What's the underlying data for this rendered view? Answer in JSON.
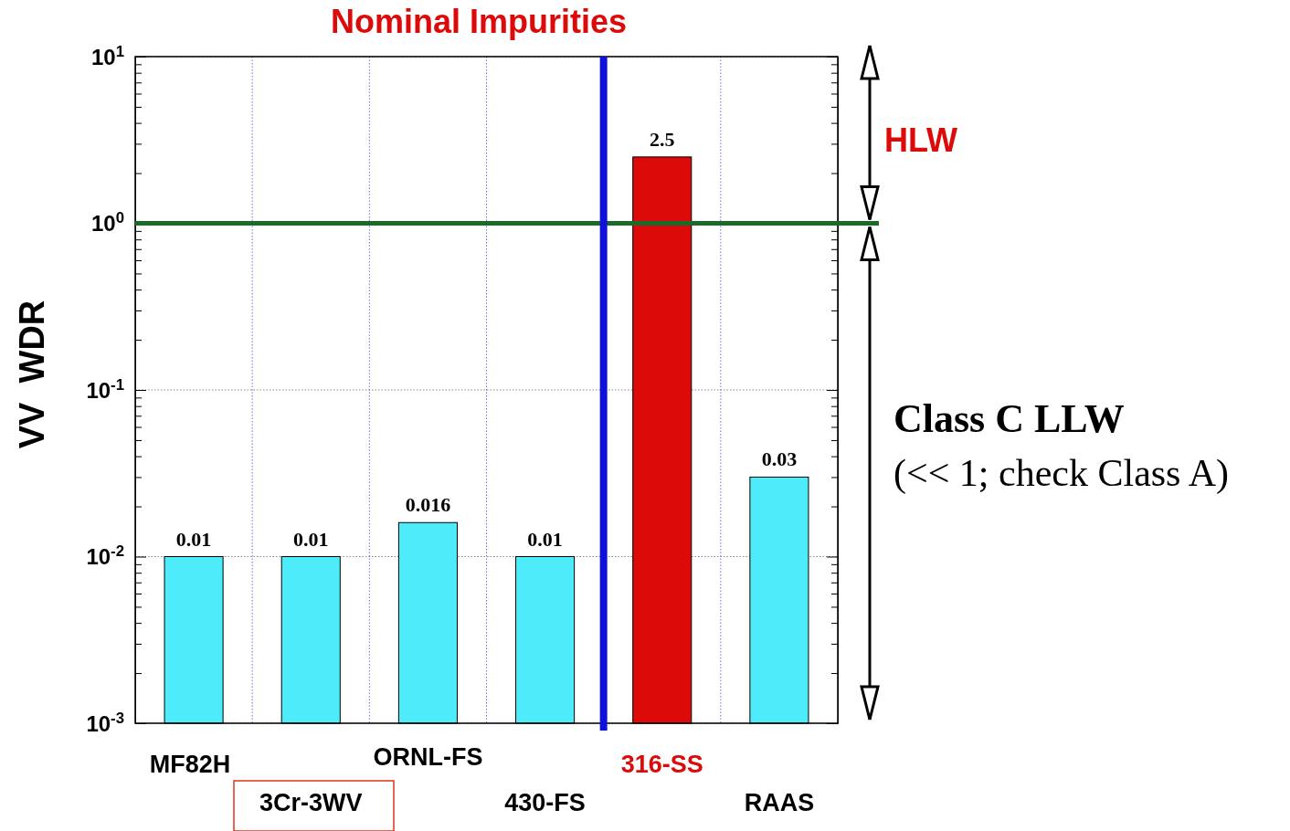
{
  "chart_data": {
    "type": "bar",
    "title": "Nominal Impurities",
    "ylabel": "VV  WDR",
    "categories": [
      "MF82H",
      "3Cr-3WV",
      "ORNL-FS",
      "430-FS",
      "316-SS",
      "RAAS"
    ],
    "values": [
      0.01,
      0.01,
      0.016,
      0.01,
      2.5,
      0.03
    ],
    "colors": [
      "#4eecfa",
      "#4eecfa",
      "#4eecfa",
      "#4eecfa",
      "#dd0a0a",
      "#4eecfa"
    ],
    "data_labels": true,
    "log": true,
    "ylim": [
      0.001,
      10
    ],
    "grid": true,
    "yticks": [
      {
        "value": 0.001,
        "label": "10$^{-3}$"
      },
      {
        "value": 0.002,
        "label": null
      },
      {
        "value": 0.003,
        "label": null
      },
      {
        "value": 0.004,
        "label": null
      },
      {
        "value": 0.005,
        "label": null
      },
      {
        "value": 0.006,
        "label": null
      },
      {
        "value": 0.007,
        "label": null
      },
      {
        "value": 0.008,
        "label": null
      },
      {
        "value": 0.009,
        "label": null
      },
      {
        "value": 0.01,
        "label": "10$^{-2}$"
      },
      {
        "value": 0.02,
        "label": null
      },
      {
        "value": 0.03,
        "label": null
      },
      {
        "value": 0.04,
        "label": null
      },
      {
        "value": 0.05,
        "label": null
      },
      {
        "value": 0.06,
        "label": null
      },
      {
        "value": 0.07,
        "label": null
      },
      {
        "value": 0.08,
        "label": null
      },
      {
        "value": 0.09,
        "label": null
      },
      {
        "value": 0.1,
        "label": "10$^{-1}$"
      },
      {
        "value": 0.2,
        "label": null
      },
      {
        "value": 0.3,
        "label": null
      },
      {
        "value": 0.4,
        "label": null
      },
      {
        "value": 0.5,
        "label": null
      },
      {
        "value": 0.6,
        "label": null
      },
      {
        "value": 0.7,
        "label": null
      },
      {
        "value": 0.8,
        "label": null
      },
      {
        "value": 0.9,
        "label": null
      },
      {
        "value": 1,
        "label": "10$^{0}$"
      },
      {
        "value": 2,
        "label": null
      },
      {
        "value": 3,
        "label": null
      },
      {
        "value": 4,
        "label": null
      },
      {
        "value": 5,
        "label": null
      },
      {
        "value": 6,
        "label": null
      },
      {
        "value": 7,
        "label": null
      },
      {
        "value": 8,
        "label": null
      },
      {
        "value": 9,
        "label": null
      },
      {
        "value": 10,
        "label": "10$^{1}$"
      }
    ],
    "ref_lines": [
      {
        "axis": "y",
        "value": 1,
        "color": "#1a6b2a"
      },
      {
        "axis": "x",
        "value": "316-SS",
        "color": "#1010dd"
      }
    ],
    "annotations": [
      "HLW",
      "Class C LLW",
      "(<< 1; check Class A)"
    ]
  }
}
